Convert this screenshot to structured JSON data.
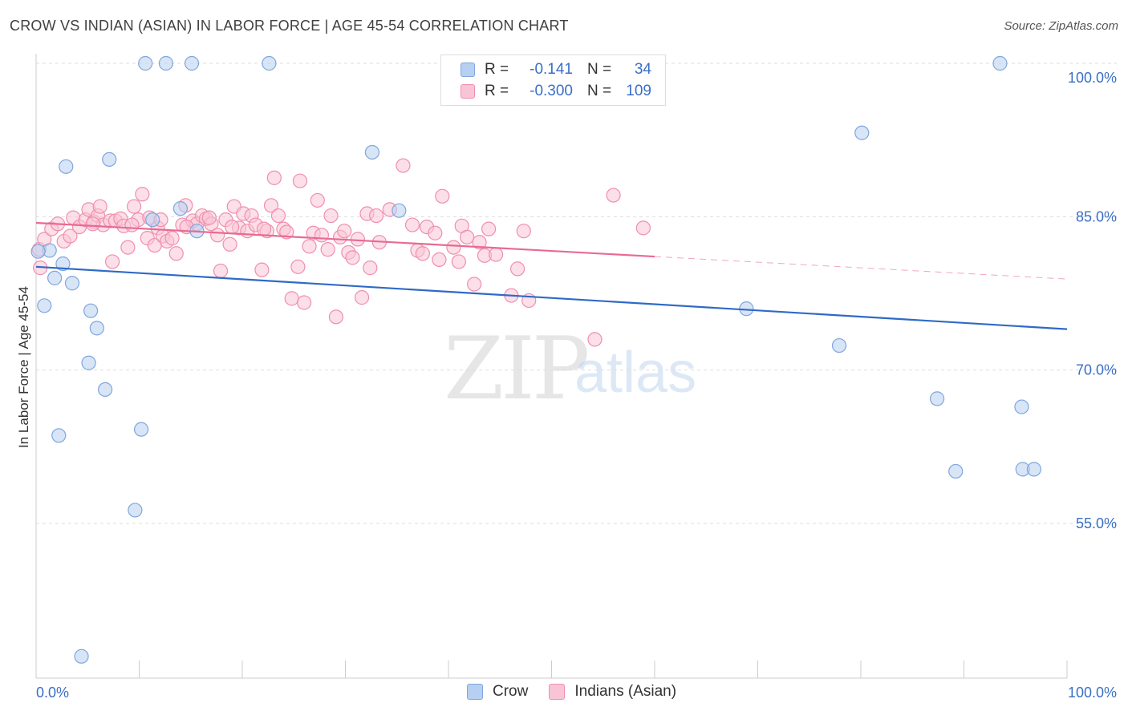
{
  "title": "CROW VS INDIAN (ASIAN) IN LABOR FORCE | AGE 45-54 CORRELATION CHART",
  "source": "Source: ZipAtlas.com",
  "watermark": {
    "zip": "ZIP",
    "atlas": "atlas"
  },
  "legend": {
    "rows": [
      {
        "r_label": "R =",
        "r_value": "-0.141",
        "n_label": "N =",
        "n_value": "34",
        "color": "#b7cff0",
        "border": "#7fa6de"
      },
      {
        "r_label": "R =",
        "r_value": "-0.300",
        "n_label": "N =",
        "n_value": "109",
        "color": "#f9c4d5",
        "border": "#ef8fae"
      }
    ]
  },
  "bottom_legend": [
    "Crow",
    "Indians (Asian)"
  ],
  "chart_data": {
    "type": "scatter",
    "title": "CROW VS INDIAN (ASIAN) IN LABOR FORCE | AGE 45-54 CORRELATION CHART",
    "xlabel": "",
    "ylabel": "In Labor Force | Age 45-54",
    "xlim": [
      0,
      100
    ],
    "ylim": [
      40,
      102.5
    ],
    "x_tick_labels": [
      "0.0%",
      "100.0%"
    ],
    "y_tick_values": [
      55,
      70,
      85,
      100
    ],
    "y_tick_labels": [
      "55.0%",
      "70.0%",
      "85.0%",
      "100.0%"
    ],
    "grid": true,
    "colors": {
      "crow": "#7fa6de",
      "crow_fill": "#b7cff0",
      "crow_line": "#2f6ac6",
      "indian": "#ef8fae",
      "indian_fill": "#f9c4d5",
      "indian_line": "#e86a93",
      "tick_label": "#3a6fc6"
    },
    "series": [
      {
        "name": "Crow",
        "points": [
          [
            10.6,
            100
          ],
          [
            12.6,
            100
          ],
          [
            15.1,
            100
          ],
          [
            22.6,
            100
          ],
          [
            93.5,
            100
          ],
          [
            2.9,
            89.9
          ],
          [
            7.1,
            90.6
          ],
          [
            32.6,
            91.3
          ],
          [
            80.1,
            93.2
          ],
          [
            14.0,
            85.8
          ],
          [
            11.3,
            84.7
          ],
          [
            35.2,
            85.6
          ],
          [
            15.6,
            83.6
          ],
          [
            1.3,
            81.7
          ],
          [
            0.2,
            81.6
          ],
          [
            2.6,
            80.4
          ],
          [
            1.8,
            79.0
          ],
          [
            3.5,
            78.5
          ],
          [
            0.8,
            76.3
          ],
          [
            5.3,
            75.8
          ],
          [
            5.9,
            74.1
          ],
          [
            68.9,
            76.0
          ],
          [
            5.1,
            70.7
          ],
          [
            6.7,
            68.1
          ],
          [
            77.9,
            72.4
          ],
          [
            2.2,
            63.6
          ],
          [
            10.2,
            64.2
          ],
          [
            87.4,
            67.2
          ],
          [
            95.6,
            66.4
          ],
          [
            95.7,
            60.3
          ],
          [
            96.8,
            60.3
          ],
          [
            89.2,
            60.1
          ],
          [
            9.6,
            56.3
          ],
          [
            4.4,
            42.0
          ]
        ]
      },
      {
        "name": "Indians (Asian)",
        "points": [
          [
            0.3,
            81.8
          ],
          [
            0.4,
            80.0
          ],
          [
            0.8,
            82.8
          ],
          [
            1.5,
            83.8
          ],
          [
            2.1,
            84.3
          ],
          [
            2.7,
            82.6
          ],
          [
            3.3,
            83.1
          ],
          [
            3.6,
            84.9
          ],
          [
            4.2,
            84.0
          ],
          [
            4.8,
            84.7
          ],
          [
            5.1,
            85.7
          ],
          [
            5.6,
            84.5
          ],
          [
            6.0,
            85.1
          ],
          [
            6.2,
            86.0
          ],
          [
            6.5,
            84.2
          ],
          [
            7.2,
            84.6
          ],
          [
            7.4,
            80.6
          ],
          [
            7.7,
            84.6
          ],
          [
            8.2,
            84.8
          ],
          [
            8.5,
            84.1
          ],
          [
            8.9,
            82.0
          ],
          [
            9.5,
            86.0
          ],
          [
            9.9,
            84.7
          ],
          [
            10.3,
            87.2
          ],
          [
            10.8,
            82.9
          ],
          [
            11.0,
            84.9
          ],
          [
            11.5,
            82.2
          ],
          [
            11.8,
            83.9
          ],
          [
            12.3,
            83.1
          ],
          [
            12.7,
            82.6
          ],
          [
            13.2,
            82.9
          ],
          [
            13.6,
            81.4
          ],
          [
            14.2,
            84.2
          ],
          [
            14.5,
            86.1
          ],
          [
            15.2,
            84.6
          ],
          [
            15.6,
            84.3
          ],
          [
            16.1,
            85.1
          ],
          [
            16.5,
            84.8
          ],
          [
            17.0,
            84.3
          ],
          [
            17.6,
            83.2
          ],
          [
            17.9,
            79.7
          ],
          [
            18.4,
            84.7
          ],
          [
            18.8,
            82.3
          ],
          [
            19.2,
            86.0
          ],
          [
            19.7,
            83.9
          ],
          [
            20.1,
            85.3
          ],
          [
            20.5,
            83.6
          ],
          [
            20.9,
            85.1
          ],
          [
            21.3,
            84.2
          ],
          [
            21.9,
            79.8
          ],
          [
            22.4,
            83.6
          ],
          [
            22.8,
            86.1
          ],
          [
            23.1,
            88.8
          ],
          [
            23.5,
            85.1
          ],
          [
            24.0,
            83.8
          ],
          [
            24.3,
            83.5
          ],
          [
            24.8,
            77.0
          ],
          [
            25.4,
            80.1
          ],
          [
            25.6,
            88.5
          ],
          [
            26.0,
            76.6
          ],
          [
            26.5,
            82.1
          ],
          [
            26.9,
            83.4
          ],
          [
            27.3,
            86.6
          ],
          [
            27.7,
            83.2
          ],
          [
            28.3,
            81.8
          ],
          [
            28.6,
            85.1
          ],
          [
            29.1,
            75.2
          ],
          [
            29.5,
            83.0
          ],
          [
            29.9,
            83.6
          ],
          [
            30.3,
            81.5
          ],
          [
            30.7,
            81.0
          ],
          [
            31.2,
            82.8
          ],
          [
            31.6,
            77.1
          ],
          [
            32.1,
            85.3
          ],
          [
            32.4,
            80.0
          ],
          [
            33.0,
            85.1
          ],
          [
            33.3,
            82.5
          ],
          [
            34.3,
            85.7
          ],
          [
            35.6,
            90.0
          ],
          [
            36.5,
            84.2
          ],
          [
            37.0,
            81.7
          ],
          [
            37.5,
            81.4
          ],
          [
            37.9,
            84.0
          ],
          [
            38.7,
            83.4
          ],
          [
            39.1,
            80.8
          ],
          [
            39.4,
            87.0
          ],
          [
            40.5,
            82.0
          ],
          [
            41.0,
            80.6
          ],
          [
            41.3,
            84.1
          ],
          [
            41.8,
            83.0
          ],
          [
            42.5,
            78.4
          ],
          [
            43.0,
            82.5
          ],
          [
            43.5,
            81.2
          ],
          [
            43.9,
            83.8
          ],
          [
            44.6,
            81.3
          ],
          [
            46.1,
            77.3
          ],
          [
            46.7,
            79.9
          ],
          [
            47.3,
            83.6
          ],
          [
            47.8,
            76.8
          ],
          [
            54.2,
            73.0
          ],
          [
            56.0,
            87.1
          ],
          [
            58.9,
            83.9
          ],
          [
            22.1,
            83.8
          ],
          [
            14.6,
            84.0
          ],
          [
            9.3,
            84.2
          ],
          [
            12.1,
            84.7
          ],
          [
            16.8,
            84.9
          ],
          [
            5.5,
            84.3
          ],
          [
            19.0,
            84.0
          ]
        ]
      }
    ],
    "trendlines": [
      {
        "series": "Crow",
        "x": [
          0,
          100
        ],
        "y": [
          80.1,
          74.0
        ],
        "style": "solid"
      },
      {
        "series": "Indians (Asian)",
        "x": [
          0,
          60
        ],
        "y": [
          84.4,
          81.1
        ],
        "style": "solid"
      },
      {
        "series": "Indians (Asian)",
        "x": [
          60,
          100
        ],
        "y": [
          81.1,
          78.9
        ],
        "style": "dashed"
      }
    ]
  }
}
